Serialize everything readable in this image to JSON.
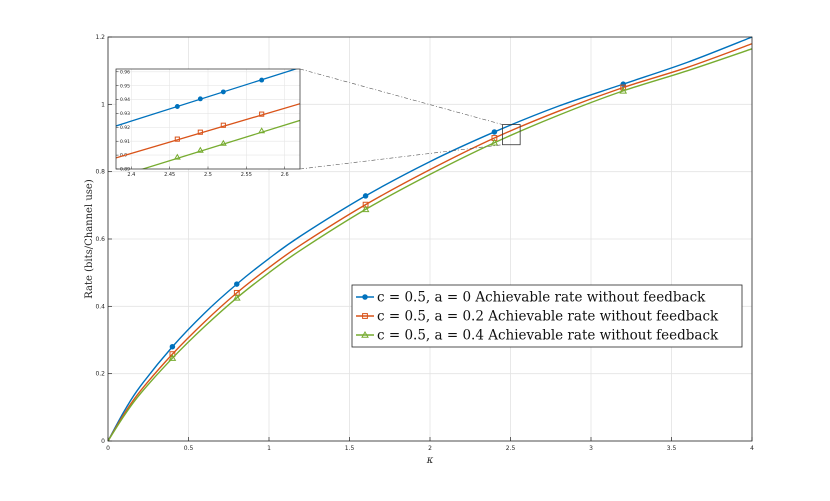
{
  "chart_data": {
    "type": "line",
    "xlabel": "κ",
    "ylabel": "Rate (bits/Channel use)",
    "xlim": [
      0,
      4
    ],
    "ylim": [
      0,
      1.2
    ],
    "x_ticks": [
      "0",
      "0.5",
      "1",
      "1.5",
      "2",
      "2.5",
      "3",
      "3.5",
      "4"
    ],
    "y_ticks": [
      "0",
      "0.2",
      "0.4",
      "0.6",
      "0.8",
      "1",
      "1.2"
    ],
    "grid": true,
    "legend_position": "center-right",
    "series": [
      {
        "name": "c = 0.5, a = 0 Achievable rate without feedback",
        "color": "#0072BD",
        "marker": "circle",
        "x": [
          0,
          0.1,
          0.2,
          0.4,
          0.6,
          0.8,
          1.0,
          1.2,
          1.6,
          2.0,
          2.4,
          2.8,
          3.2,
          3.6,
          4.0
        ],
        "y": [
          0,
          0.088,
          0.162,
          0.28,
          0.38,
          0.466,
          0.542,
          0.61,
          0.728,
          0.83,
          0.918,
          0.995,
          1.06,
          1.125,
          1.2
        ],
        "marker_x": [
          0.4,
          0.8,
          1.6,
          2.4,
          3.2
        ],
        "marker_y": [
          0.28,
          0.466,
          0.728,
          0.918,
          1.06
        ]
      },
      {
        "name": "c = 0.5, a = 0.2 Achievable rate without feedback",
        "color": "#D95319",
        "marker": "square",
        "x": [
          0,
          0.1,
          0.2,
          0.4,
          0.6,
          0.8,
          1.0,
          1.2,
          1.6,
          2.0,
          2.4,
          2.8,
          3.2,
          3.6,
          4.0
        ],
        "y": [
          0,
          0.08,
          0.148,
          0.258,
          0.354,
          0.44,
          0.515,
          0.583,
          0.702,
          0.806,
          0.9,
          0.98,
          1.05,
          1.11,
          1.18
        ],
        "marker_x": [
          0.4,
          0.8,
          1.6,
          2.4,
          3.2
        ],
        "marker_y": [
          0.258,
          0.44,
          0.702,
          0.9,
          1.05
        ]
      },
      {
        "name": "c = 0.5, a = 0.4 Achievable rate without feedback",
        "color": "#77AC30",
        "marker": "triangle",
        "x": [
          0,
          0.1,
          0.2,
          0.4,
          0.6,
          0.8,
          1.0,
          1.2,
          1.6,
          2.0,
          2.4,
          2.8,
          3.2,
          3.6,
          4.0
        ],
        "y": [
          0,
          0.075,
          0.14,
          0.246,
          0.34,
          0.425,
          0.5,
          0.568,
          0.688,
          0.792,
          0.886,
          0.968,
          1.04,
          1.1,
          1.165
        ],
        "marker_x": [
          0.4,
          0.8,
          1.6,
          2.4,
          3.2
        ],
        "marker_y": [
          0.246,
          0.425,
          0.688,
          0.886,
          1.04
        ]
      }
    ],
    "inset": {
      "xlim": [
        2.38,
        2.62
      ],
      "ylim": [
        0.89,
        0.962
      ],
      "x_ticks": [
        "2.4",
        "2.45",
        "2.5",
        "2.55",
        "2.6"
      ],
      "y_ticks": [
        "0.89",
        "0.9",
        "0.91",
        "0.92",
        "0.93",
        "0.94",
        "0.95",
        "0.96"
      ],
      "zoom_box": {
        "xlim": [
          2.45,
          2.56
        ],
        "ylim": [
          0.88,
          0.94
        ]
      },
      "series": [
        {
          "x": [
            2.38,
            2.62
          ],
          "y": [
            0.921,
            0.963
          ],
          "marker_x": [
            2.46,
            2.49,
            2.52,
            2.57
          ],
          "marker_y": [
            0.935,
            0.9405,
            0.9455,
            0.954
          ]
        },
        {
          "x": [
            2.38,
            2.62
          ],
          "y": [
            0.898,
            0.937
          ],
          "marker_x": [
            2.46,
            2.49,
            2.52,
            2.57
          ],
          "marker_y": [
            0.9115,
            0.9165,
            0.9215,
            0.9295
          ]
        },
        {
          "x": [
            2.38,
            2.62
          ],
          "y": [
            0.884,
            0.925
          ],
          "marker_x": [
            2.46,
            2.49,
            2.52,
            2.57
          ],
          "marker_y": [
            0.8985,
            0.9035,
            0.9085,
            0.9175
          ]
        }
      ]
    }
  }
}
